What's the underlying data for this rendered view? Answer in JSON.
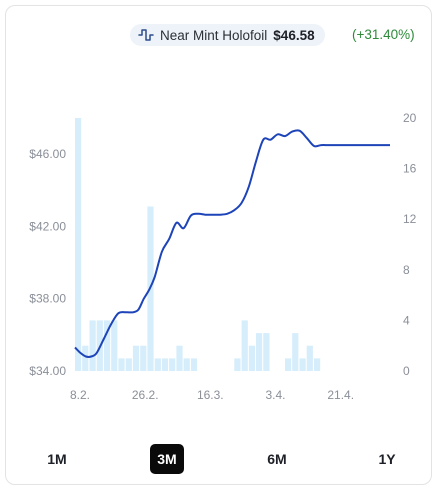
{
  "header": {
    "variant": "Near Mint Holofoil",
    "price": "$46.58",
    "change": "(+31.40%)",
    "icon": "line-chart-icon"
  },
  "ranges": [
    {
      "label": "1M",
      "active": false
    },
    {
      "label": "3M",
      "active": true
    },
    {
      "label": "6M",
      "active": false
    },
    {
      "label": "1Y",
      "active": false
    }
  ],
  "chart_data": {
    "type": "line",
    "y_left": {
      "ticks": [
        "$46.00",
        "$42.00",
        "$38.00",
        "$34.00"
      ],
      "values": [
        46,
        42,
        38,
        34
      ],
      "range": [
        34,
        48
      ]
    },
    "y_right": {
      "ticks": [
        "20",
        "16",
        "12",
        "8",
        "4",
        "0"
      ],
      "values": [
        20,
        16,
        12,
        8,
        4,
        0
      ],
      "range": [
        0,
        20
      ]
    },
    "x_ticks": [
      "8.2.",
      "26.2.",
      "16.3.",
      "3.4.",
      "21.4."
    ],
    "x_tick_days": [
      0,
      18,
      36,
      54,
      72
    ],
    "x_range_days": [
      0,
      87
    ],
    "price_series": {
      "days": [
        0,
        1.5,
        3,
        4.5,
        6,
        8,
        10,
        12,
        14,
        16,
        17.5,
        19,
        20.5,
        22,
        24,
        26,
        28,
        30,
        32,
        34,
        36,
        38,
        40,
        42,
        44,
        46,
        48,
        50,
        52,
        54,
        56,
        58,
        60,
        62,
        64,
        66,
        68,
        70,
        72,
        74,
        76,
        78,
        80,
        82,
        84,
        87
      ],
      "values": [
        35.3,
        35.0,
        34.8,
        34.8,
        35.0,
        35.8,
        36.6,
        37.2,
        37.25,
        37.25,
        37.4,
        38.0,
        38.5,
        39.2,
        40.6,
        41.3,
        42.2,
        41.9,
        42.6,
        42.7,
        42.65,
        42.65,
        42.65,
        42.7,
        42.9,
        43.3,
        44.2,
        45.6,
        46.8,
        46.8,
        47.1,
        47.0,
        47.25,
        47.3,
        46.9,
        46.45,
        46.5,
        46.5,
        46.5,
        46.5,
        46.5,
        46.5,
        46.5,
        46.5,
        46.5,
        46.5
      ],
      "color": "#1d44b8"
    },
    "volume_series": {
      "days": [
        0,
        2,
        4,
        6,
        8,
        10,
        12,
        14,
        16,
        18,
        20,
        22,
        24,
        26,
        28,
        30,
        32,
        34,
        36,
        38,
        40,
        42,
        44,
        46,
        48,
        50,
        52,
        54,
        56,
        58,
        60,
        62,
        64,
        66,
        68,
        70,
        72,
        74,
        76,
        78,
        80,
        82,
        84
      ],
      "values": [
        20,
        2,
        4,
        4,
        4,
        4,
        1,
        1,
        2,
        2,
        13,
        1,
        1,
        1,
        2,
        1,
        1,
        0,
        0,
        0,
        0,
        0,
        1,
        4,
        2,
        3,
        3,
        0,
        0,
        1,
        3,
        1,
        2,
        1,
        0,
        0,
        0,
        0,
        0,
        0,
        0,
        0,
        0
      ],
      "color": "#d6edfb"
    }
  }
}
